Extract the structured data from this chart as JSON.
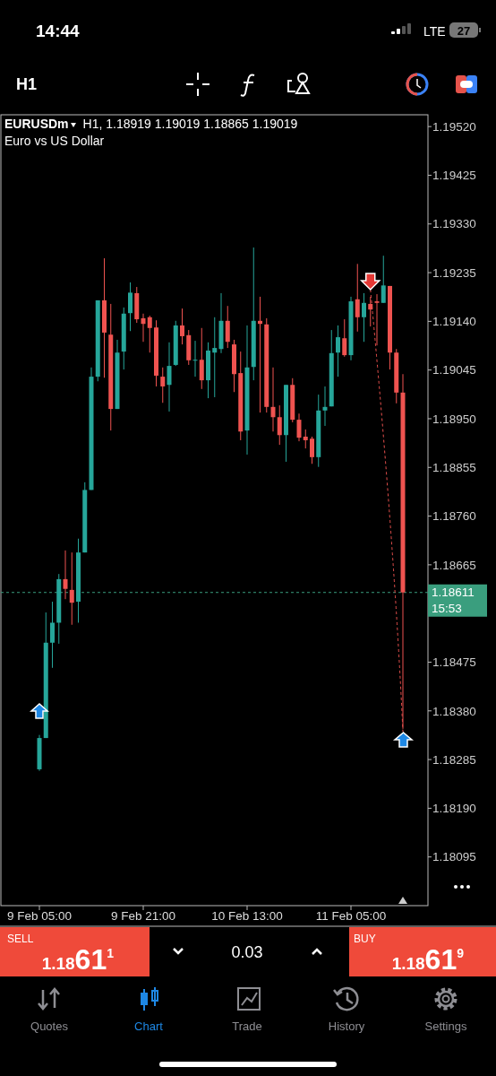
{
  "chart_data": {
    "type": "candlestick",
    "title": "EURUSDm",
    "subtitle": "Euro vs US Dollar",
    "categories": [
      "9 Feb 05:00",
      null,
      null,
      null,
      null,
      null,
      null,
      null,
      null,
      null,
      null,
      null,
      null,
      null,
      null,
      null,
      "9 Feb 21:00",
      null,
      null,
      null,
      null,
      null,
      null,
      null,
      null,
      null,
      null,
      null,
      null,
      null,
      null,
      null,
      "10 Feb 13:00",
      null,
      null,
      null,
      null,
      null,
      null,
      null,
      null,
      null,
      null,
      null,
      null,
      null,
      null,
      null,
      "11 Feb 05:00",
      null,
      null,
      null,
      null,
      null,
      null,
      null,
      null
    ],
    "ohlc": [
      [
        1.18266,
        1.18333,
        1.18263,
        1.18327
      ],
      [
        1.18327,
        1.18572,
        1.18327,
        1.18513
      ],
      [
        1.18513,
        1.18593,
        1.18464,
        1.18552
      ],
      [
        1.18552,
        1.18647,
        1.18511,
        1.18637
      ],
      [
        1.18637,
        1.18693,
        1.18598,
        1.18618
      ],
      [
        1.18616,
        1.18689,
        1.18548,
        1.18591
      ],
      [
        1.18593,
        1.18716,
        1.18552,
        1.18689
      ],
      [
        1.18689,
        1.18826,
        1.18689,
        1.18811
      ],
      [
        1.18811,
        1.1905,
        1.18811,
        1.19032
      ],
      [
        1.19032,
        1.19181,
        1.19023,
        1.19181
      ],
      [
        1.19181,
        1.19263,
        1.1903,
        1.19118
      ],
      [
        1.19114,
        1.19174,
        1.18927,
        1.18969
      ],
      [
        1.18969,
        1.19104,
        1.18969,
        1.19079
      ],
      [
        1.19081,
        1.19167,
        1.19046,
        1.19155
      ],
      [
        1.19156,
        1.19216,
        1.19121,
        1.19196
      ],
      [
        1.19195,
        1.19207,
        1.19137,
        1.19144
      ],
      [
        1.19146,
        1.19155,
        1.191,
        1.19135
      ],
      [
        1.19148,
        1.19151,
        1.19079,
        1.19127
      ],
      [
        1.19128,
        1.19142,
        1.19013,
        1.19034
      ],
      [
        1.19032,
        1.1905,
        1.18981,
        1.19013
      ],
      [
        1.19016,
        1.19099,
        1.18964,
        1.19053
      ],
      [
        1.19055,
        1.19141,
        1.19053,
        1.19132
      ],
      [
        1.19132,
        1.19165,
        1.19095,
        1.19111
      ],
      [
        1.19113,
        1.19123,
        1.19055,
        1.19064
      ],
      [
        1.19064,
        1.19102,
        1.19032,
        1.19065
      ],
      [
        1.19065,
        1.19127,
        1.19008,
        1.19025
      ],
      [
        1.19025,
        1.19099,
        1.1899,
        1.19083
      ],
      [
        1.19079,
        1.19148,
        1.18992,
        1.19088
      ],
      [
        1.19086,
        1.19195,
        1.19078,
        1.19141
      ],
      [
        1.19141,
        1.1917,
        1.19088,
        1.191
      ],
      [
        1.19095,
        1.19104,
        1.19002,
        1.19037
      ],
      [
        1.19039,
        1.19081,
        1.18908,
        1.18925
      ],
      [
        1.18927,
        1.19132,
        1.1888,
        1.1905
      ],
      [
        1.19051,
        1.19284,
        1.19025,
        1.19141
      ],
      [
        1.19141,
        1.19188,
        1.18962,
        1.19135
      ],
      [
        1.19134,
        1.19146,
        1.18962,
        1.18973
      ],
      [
        1.18973,
        1.1905,
        1.18925,
        1.18953
      ],
      [
        1.18953,
        1.18976,
        1.18899,
        1.18918
      ],
      [
        1.18918,
        1.19016,
        1.18866,
        1.19016
      ],
      [
        1.19016,
        1.19029,
        1.18943,
        1.18948
      ],
      [
        1.18948,
        1.1896,
        1.18906,
        1.18913
      ],
      [
        1.18915,
        1.18929,
        1.18892,
        1.18908
      ],
      [
        1.18911,
        1.18915,
        1.18862,
        1.18875
      ],
      [
        1.18875,
        1.18997,
        1.18856,
        1.18966
      ],
      [
        1.18966,
        1.19013,
        1.18936,
        1.18973
      ],
      [
        1.18974,
        1.19123,
        1.18974,
        1.19078
      ],
      [
        1.19079,
        1.19132,
        1.19032,
        1.19109
      ],
      [
        1.19107,
        1.19144,
        1.19071,
        1.19074
      ],
      [
        1.19074,
        1.19188,
        1.19064,
        1.19179
      ],
      [
        1.19183,
        1.19252,
        1.1912,
        1.19148
      ],
      [
        1.19148,
        1.19195,
        1.191,
        1.19176
      ],
      [
        1.19174,
        1.19188,
        1.1913,
        1.19163
      ],
      [
        1.19179,
        1.19193,
        1.19093,
        1.19176
      ],
      [
        1.19176,
        1.19268,
        1.19176,
        1.1921
      ],
      [
        1.19209,
        1.19209,
        1.19046,
        1.19079
      ],
      [
        1.19079,
        1.19086,
        1.1898,
        1.19001
      ],
      [
        1.19001,
        1.19037,
        1.18345,
        1.18611
      ]
    ],
    "colors": [
      "#26a69a",
      "#26a69a",
      "#26a69a",
      "#26a69a",
      "#ef5350",
      "#ef5350",
      "#26a69a",
      "#26a69a",
      "#26a69a",
      "#26a69a",
      "#ef5350",
      "#ef5350",
      "#26a69a",
      "#26a69a",
      "#26a69a",
      "#ef5350",
      "#ef5350",
      "#ef5350",
      "#ef5350",
      "#ef5350",
      "#26a69a",
      "#26a69a",
      "#ef5350",
      "#ef5350",
      "#26a69a",
      "#ef5350",
      "#26a69a",
      "#26a69a",
      "#26a69a",
      "#ef5350",
      "#ef5350",
      "#ef5350",
      "#26a69a",
      "#26a69a",
      "#ef5350",
      "#ef5350",
      "#ef5350",
      "#ef5350",
      "#26a69a",
      "#ef5350",
      "#ef5350",
      "#ef5350",
      "#ef5350",
      "#26a69a",
      "#26a69a",
      "#26a69a",
      "#26a69a",
      "#ef5350",
      "#26a69a",
      "#ef5350",
      "#26a69a",
      "#ef5350",
      "#ef5350",
      "#26a69a",
      "#ef5350",
      "#ef5350",
      "#ef5350"
    ],
    "ylim": [
      1.18,
      1.19543
    ],
    "yticks": [
      {
        "value": 1.1952,
        "label": "1.19520"
      },
      {
        "value": 1.19425,
        "label": "1.19425"
      },
      {
        "value": 1.1933,
        "label": "1.19330"
      },
      {
        "value": 1.19235,
        "label": "1.19235"
      },
      {
        "value": 1.1914,
        "label": "1.19140"
      },
      {
        "value": 1.19045,
        "label": "1.19045"
      },
      {
        "value": 1.1895,
        "label": "1.18950"
      },
      {
        "value": 1.18855,
        "label": "1.18855"
      },
      {
        "value": 1.1876,
        "label": "1.18760"
      },
      {
        "value": 1.18665,
        "label": "1.18665"
      },
      {
        "value": 1.18475,
        "label": "1.18475"
      },
      {
        "value": 1.1838,
        "label": "1.18380"
      },
      {
        "value": 1.18285,
        "label": "1.18285"
      },
      {
        "value": 1.1819,
        "label": "1.18190"
      },
      {
        "value": 1.18095,
        "label": "1.18095"
      }
    ],
    "ref_lines": [
      {
        "axis": "y",
        "value": 1.18611,
        "label": "1.18611",
        "color": "#3a9e7e",
        "line_style": "dashed"
      }
    ],
    "grid": false,
    "annotations": [
      "H1, 1.18919 1.19019 1.18865 1.19019",
      "15:53",
      "14:44",
      "LTE",
      "27",
      "H1",
      "SELL",
      "1.1861$^{1}$",
      "0.03",
      "BUY",
      "1.1861$^{9}$",
      "Quotes",
      "Chart",
      "Trade",
      "History",
      "Settings"
    ]
  }
}
